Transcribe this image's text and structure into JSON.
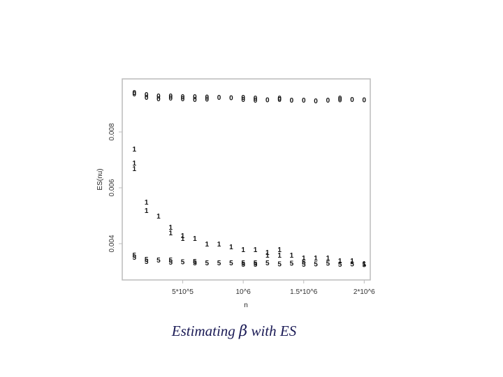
{
  "caption": {
    "prefix": "Estimating ",
    "symbol": "β",
    "suffix": " with ES"
  },
  "chart_data": {
    "type": "scatter",
    "xlabel": "n",
    "ylabel": "ES(nu)",
    "x_ticks": [
      {
        "value": 500000,
        "label": "5*10^5"
      },
      {
        "value": 1000000,
        "label": "10^6"
      },
      {
        "value": 1500000,
        "label": "1.5*10^6"
      },
      {
        "value": 2000000,
        "label": "2*10^6"
      }
    ],
    "y_ticks": [
      {
        "value": 0.004,
        "label": "0.004"
      },
      {
        "value": 0.006,
        "label": "0.006"
      },
      {
        "value": 0.008,
        "label": "0.008"
      }
    ],
    "xlim": [
      0,
      2050000
    ],
    "ylim": [
      0.0027,
      0.0099
    ],
    "series": [
      {
        "marker": "0",
        "points": [
          [
            100000,
            0.00942
          ],
          [
            100000,
            0.00937
          ],
          [
            200000,
            0.00935
          ],
          [
            200000,
            0.00925
          ],
          [
            300000,
            0.0093
          ],
          [
            300000,
            0.0092
          ],
          [
            400000,
            0.0093
          ],
          [
            400000,
            0.00922
          ],
          [
            500000,
            0.00928
          ],
          [
            500000,
            0.0092
          ],
          [
            600000,
            0.00928
          ],
          [
            600000,
            0.00918
          ],
          [
            700000,
            0.00926
          ],
          [
            700000,
            0.00919
          ],
          [
            800000,
            0.00925
          ],
          [
            900000,
            0.00924
          ],
          [
            1000000,
            0.00925
          ],
          [
            1000000,
            0.00918
          ],
          [
            1100000,
            0.00922
          ],
          [
            1100000,
            0.00915
          ],
          [
            1200000,
            0.00916
          ],
          [
            1300000,
            0.00923
          ],
          [
            1300000,
            0.00917
          ],
          [
            1400000,
            0.00915
          ],
          [
            1500000,
            0.00915
          ],
          [
            1600000,
            0.00913
          ],
          [
            1700000,
            0.00915
          ],
          [
            1800000,
            0.00922
          ],
          [
            1800000,
            0.00916
          ],
          [
            1900000,
            0.00917
          ],
          [
            2000000,
            0.00916
          ]
        ]
      },
      {
        "marker": "1",
        "points": [
          [
            100000,
            0.0074
          ],
          [
            100000,
            0.0069
          ],
          [
            100000,
            0.0067
          ],
          [
            200000,
            0.0055
          ],
          [
            200000,
            0.0052
          ],
          [
            300000,
            0.005
          ],
          [
            400000,
            0.0046
          ],
          [
            400000,
            0.0044
          ],
          [
            500000,
            0.0043
          ],
          [
            500000,
            0.0042
          ],
          [
            600000,
            0.0042
          ],
          [
            700000,
            0.004
          ],
          [
            800000,
            0.004
          ],
          [
            900000,
            0.0039
          ],
          [
            1000000,
            0.0038
          ],
          [
            1100000,
            0.0038
          ],
          [
            1200000,
            0.0037
          ],
          [
            1200000,
            0.0036
          ],
          [
            1300000,
            0.0038
          ],
          [
            1300000,
            0.0036
          ],
          [
            1400000,
            0.0036
          ],
          [
            1500000,
            0.0035
          ],
          [
            1600000,
            0.0035
          ],
          [
            1700000,
            0.0035
          ],
          [
            1800000,
            0.0034
          ],
          [
            1900000,
            0.0034
          ],
          [
            2000000,
            0.0033
          ]
        ]
      },
      {
        "marker": "5",
        "points": [
          [
            100000,
            0.0036
          ],
          [
            100000,
            0.00352
          ],
          [
            200000,
            0.00345
          ],
          [
            200000,
            0.00337
          ],
          [
            300000,
            0.00342
          ],
          [
            400000,
            0.00343
          ],
          [
            400000,
            0.00335
          ],
          [
            500000,
            0.00336
          ],
          [
            600000,
            0.00338
          ],
          [
            600000,
            0.00332
          ],
          [
            700000,
            0.00333
          ],
          [
            800000,
            0.00332
          ],
          [
            900000,
            0.00333
          ],
          [
            1000000,
            0.00333
          ],
          [
            1000000,
            0.00327
          ],
          [
            1100000,
            0.00332
          ],
          [
            1100000,
            0.00327
          ],
          [
            1200000,
            0.00332
          ],
          [
            1300000,
            0.00329
          ],
          [
            1400000,
            0.00331
          ],
          [
            1500000,
            0.00336
          ],
          [
            1500000,
            0.00327
          ],
          [
            1600000,
            0.00329
          ],
          [
            1700000,
            0.00331
          ],
          [
            1800000,
            0.00328
          ],
          [
            1900000,
            0.00329
          ],
          [
            2000000,
            0.00326
          ]
        ]
      }
    ]
  }
}
